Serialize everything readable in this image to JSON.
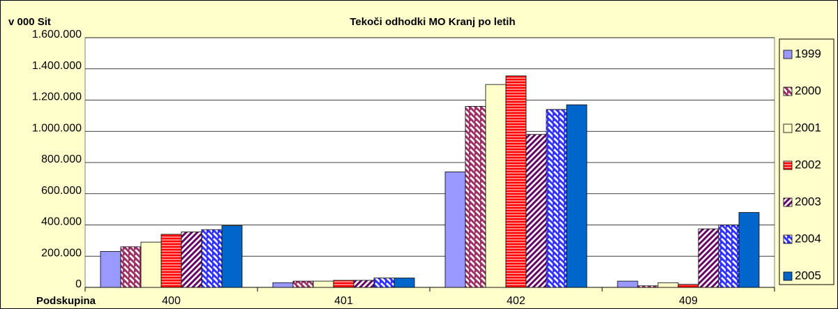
{
  "chart_data": {
    "type": "bar",
    "title": "Tekoči odhodki MO Kranj po letih",
    "y_label": "v 000 Sit",
    "x_label": "Podskupina",
    "categories": [
      "400",
      "401",
      "402",
      "409"
    ],
    "series": [
      {
        "name": "1999",
        "color": "#9999ff",
        "pattern": "solid",
        "values": [
          230000,
          30000,
          740000,
          40000
        ]
      },
      {
        "name": "2000",
        "color": "#993366",
        "pattern": "diagonal-down",
        "values": [
          260000,
          40000,
          1160000,
          10000
        ]
      },
      {
        "name": "2001",
        "color": "#ffffcc",
        "pattern": "solid",
        "values": [
          290000,
          40000,
          1300000,
          30000
        ]
      },
      {
        "name": "2002",
        "color": "#ff0000",
        "pattern": "horizontal",
        "values": [
          340000,
          45000,
          1355000,
          20000
        ]
      },
      {
        "name": "2003",
        "color": "#660066",
        "pattern": "diagonal-up",
        "values": [
          355000,
          45000,
          980000,
          375000
        ]
      },
      {
        "name": "2004",
        "color": "#3333ff",
        "pattern": "diagonal-down",
        "values": [
          370000,
          60000,
          1140000,
          400000
        ]
      },
      {
        "name": "2005",
        "color": "#0066cc",
        "pattern": "solid",
        "values": [
          395000,
          60000,
          1170000,
          480000
        ]
      }
    ],
    "ylim": [
      0,
      1600000
    ],
    "yticks": [
      {
        "value": 0,
        "label": "0"
      },
      {
        "value": 200000,
        "label": "200.000"
      },
      {
        "value": 400000,
        "label": "400.000"
      },
      {
        "value": 600000,
        "label": "600.000"
      },
      {
        "value": 800000,
        "label": "800.000"
      },
      {
        "value": 1000000,
        "label": "1.000.000"
      },
      {
        "value": 1200000,
        "label": "1.200.000"
      },
      {
        "value": 1400000,
        "label": "1.400.000"
      },
      {
        "value": 1600000,
        "label": "1.600.000"
      }
    ],
    "grid": true,
    "legend": "right"
  }
}
